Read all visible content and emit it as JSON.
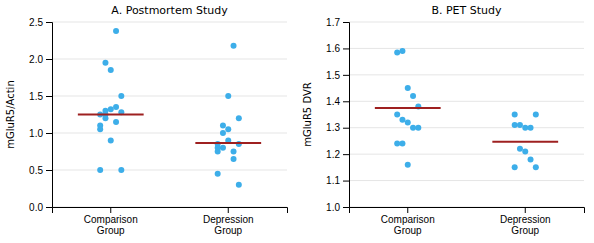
{
  "chart_data": [
    {
      "type": "strip",
      "title": "A. Postmortem Study",
      "y_label": "mGluR5/Actin",
      "categories": [
        "Comparison\nGroup",
        "Depression\nGroup"
      ],
      "series": [
        {
          "type": "scatter",
          "marker": "circle",
          "color": "#3daee9",
          "values": [
            [
              1.05,
              1.3,
              1.32,
              1.35,
              1.28,
              1.1,
              1.25,
              0.9,
              1.15,
              0.5,
              0.5,
              1.95,
              1.85,
              2.38,
              1.5,
              1.25,
              1.2
            ],
            [
              0.85,
              0.8,
              0.9,
              0.75,
              0.85,
              0.75,
              1.0,
              1.05,
              0.65,
              0.3,
              0.45,
              1.1,
              1.5,
              2.18,
              1.2,
              0.8
            ]
          ]
        },
        {
          "type": "mean",
          "line_style": "solid",
          "color": "#9e2020",
          "values": [
            1.25,
            0.865
          ]
        }
      ],
      "ylim": [
        0.0,
        2.5
      ],
      "yticks": [
        {
          "value": 0.0,
          "label": "0.0"
        },
        0.5,
        {
          "value": 1.0,
          "label": "1.0"
        },
        1.5,
        {
          "value": 2.0,
          "label": "2.0"
        },
        2.5
      ],
      "grid": true
    },
    {
      "type": "strip",
      "title": "B. PET Study",
      "y_label": "mGluR5 DVR",
      "categories": [
        "Comparison\nGroup",
        "Depression\nGroup"
      ],
      "series": [
        {
          "type": "scatter",
          "marker": "circle",
          "color": "#3daee9",
          "values": [
            [
              1.585,
              1.59,
              1.45,
              1.42,
              1.38,
              1.35,
              1.33,
              1.32,
              1.3,
              1.3,
              1.24,
              1.24,
              1.16
            ],
            [
              1.31,
              1.31,
              1.3,
              1.3,
              1.35,
              1.35,
              1.22,
              1.21,
              1.18,
              1.15,
              1.15
            ]
          ]
        },
        {
          "type": "mean",
          "line_style": "solid",
          "color": "#9e2020",
          "values": [
            1.375,
            1.247
          ]
        }
      ],
      "ylim": [
        1.0,
        1.7
      ],
      "yticks": [
        {
          "value": 1.0,
          "label": "1.0"
        },
        1.1,
        1.2,
        1.3,
        1.4,
        1.5,
        1.6,
        1.7
      ],
      "grid": true
    }
  ]
}
